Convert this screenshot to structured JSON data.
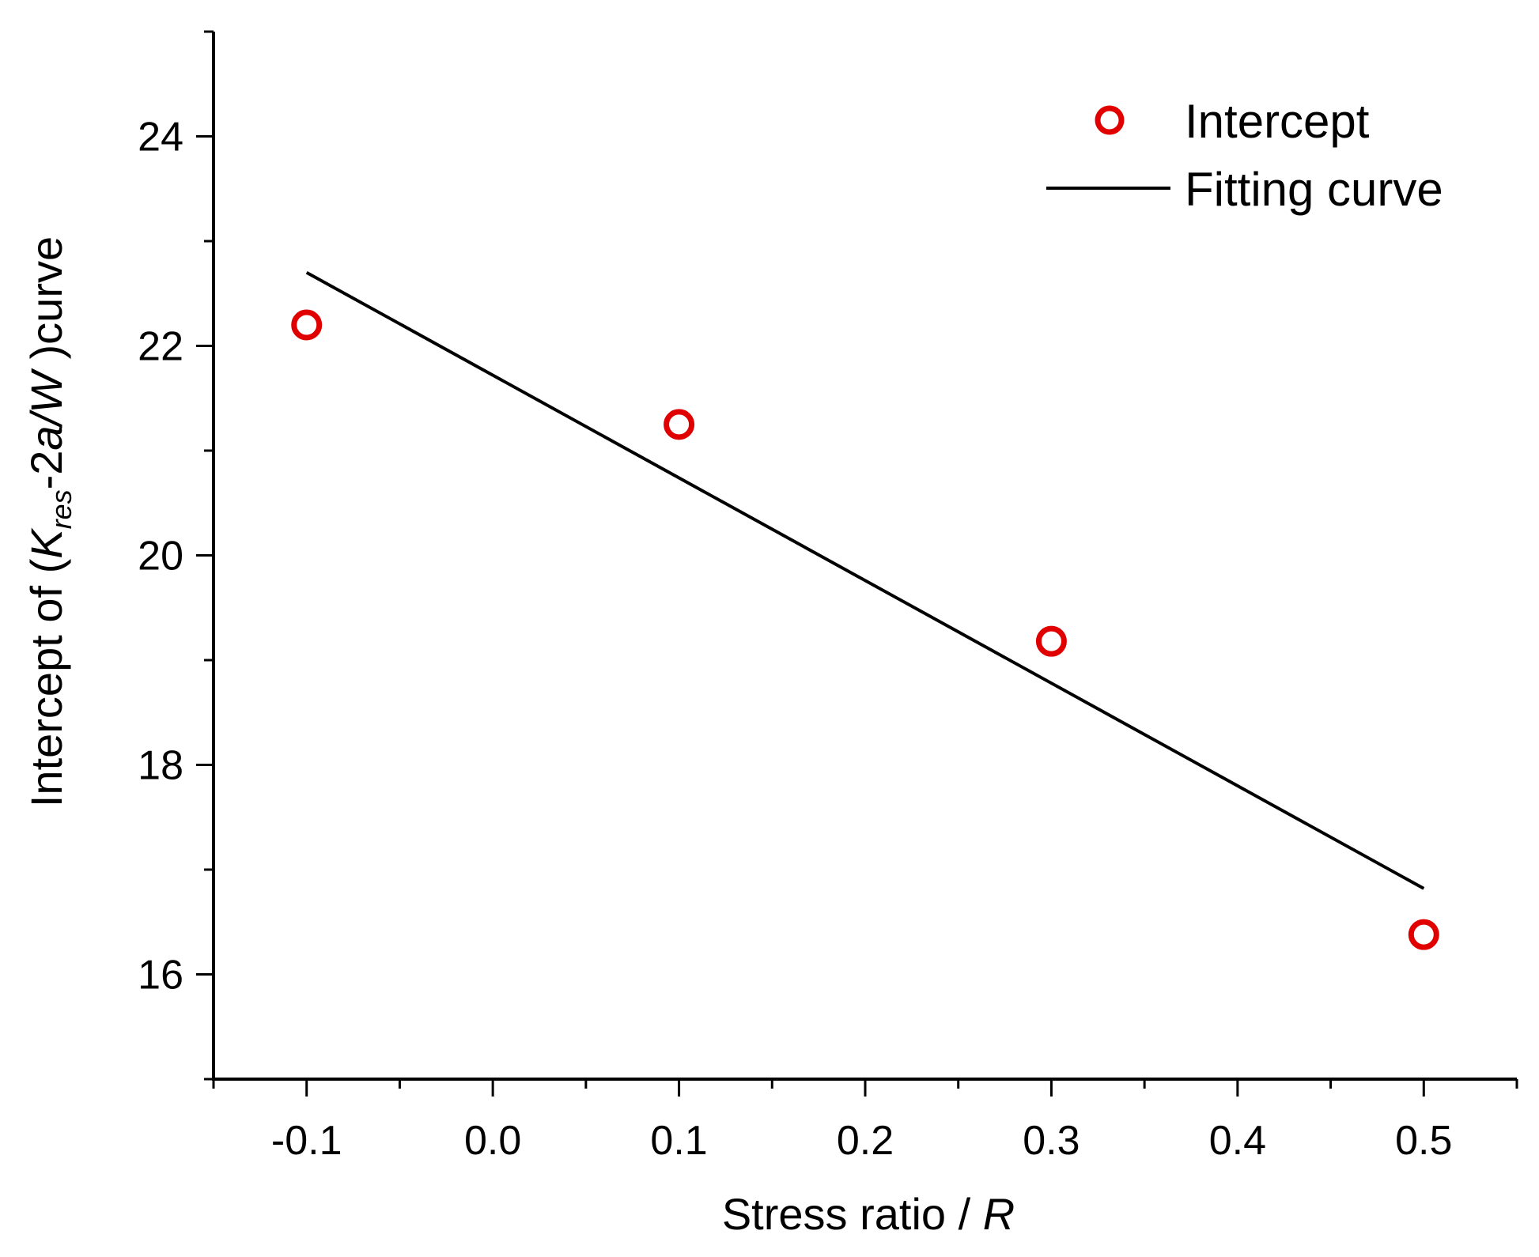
{
  "chart_data": {
    "type": "scatter",
    "xlabel_text": "Stress ratio / ",
    "xlabel_var": "R",
    "ylabel_prefix": "Intercept of (",
    "ylabel_K": "K",
    "ylabel_sub": "res",
    "ylabel_mid": "-2",
    "ylabel_aW": "a/W",
    "ylabel_suffix": " )curve",
    "xlim": [
      -0.15,
      0.55
    ],
    "ylim": [
      15,
      25
    ],
    "x_ticks": [
      -0.1,
      0.0,
      0.1,
      0.2,
      0.3,
      0.4,
      0.5
    ],
    "x_tick_labels": [
      "-0.1",
      "0.0",
      "0.1",
      "0.2",
      "0.3",
      "0.4",
      "0.5"
    ],
    "y_ticks": [
      16,
      18,
      20,
      22,
      24
    ],
    "y_tick_labels": [
      "16",
      "18",
      "20",
      "22",
      "24"
    ],
    "x_minor_step": 0.05,
    "y_minor_step": 1,
    "legend_position": "top-right",
    "series": [
      {
        "name": "Intercept",
        "kind": "marker",
        "color": "#e00000",
        "x": [
          -0.1,
          0.1,
          0.3,
          0.5
        ],
        "y": [
          22.2,
          21.25,
          19.18,
          16.38
        ]
      },
      {
        "name": "Fitting curve",
        "kind": "line",
        "color": "#000000",
        "x": [
          -0.1,
          0.5
        ],
        "y": [
          22.7,
          16.82
        ]
      }
    ]
  }
}
